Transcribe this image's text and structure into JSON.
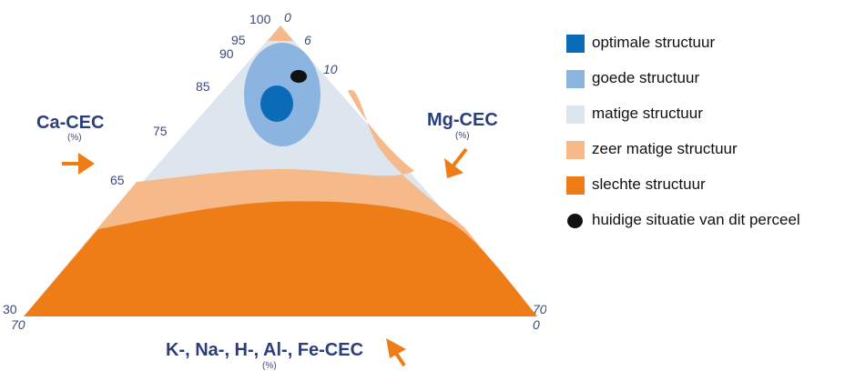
{
  "ticks": {
    "top_left": "100",
    "top_right": "0",
    "left": [
      "95",
      "90",
      "85",
      "75",
      "65"
    ],
    "right": [
      "6",
      "10"
    ],
    "bottom_left_top": "30",
    "bottom_left_bottom": "70",
    "bottom_right_top": "70",
    "bottom_right_bottom": "0"
  },
  "axes": {
    "left": {
      "title": "Ca-CEC",
      "unit": "(%)"
    },
    "right": {
      "title": "Mg-CEC",
      "unit": "(%)"
    },
    "bottom": {
      "title": "K-, Na-, H-, Al-, Fe-CEC",
      "unit": "(%)"
    }
  },
  "colors": {
    "optimal": "#0a6bb8",
    "good": "#8cb4e0",
    "moderate": "#dde6ee",
    "very_moderate": "#f6b98a",
    "poor": "#ee7d17",
    "current": "#111111",
    "axis_text": "#2a3f7a",
    "arrow": "#ee7d17"
  },
  "legend": [
    {
      "label": "optimale structuur",
      "color": "#0a6bb8",
      "shape": "square"
    },
    {
      "label": "goede structuur",
      "color": "#8cb4e0",
      "shape": "square"
    },
    {
      "label": "matige structuur",
      "color": "#dde6ee",
      "shape": "square"
    },
    {
      "label": "zeer matige structuur",
      "color": "#f6b98a",
      "shape": "square"
    },
    {
      "label": "slechte structuur",
      "color": "#ee7d17",
      "shape": "square"
    },
    {
      "label": "huidige situatie van dit perceel",
      "color": "#111111",
      "shape": "dot"
    }
  ]
}
